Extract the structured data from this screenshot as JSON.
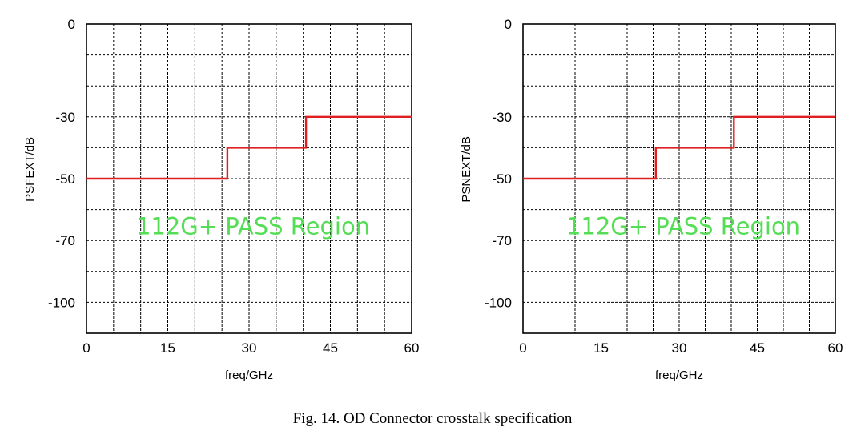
{
  "figure": {
    "caption": "Fig. 14. OD Connector crosstalk specification"
  },
  "chart_data": [
    {
      "type": "line",
      "xlabel": "freq/GHz",
      "ylabel": "PSFEXT/dB",
      "xlim": [
        0,
        60
      ],
      "xticks": [
        "0",
        "15",
        "30",
        "45",
        "60"
      ],
      "ytick_labels": [
        "0",
        "-30",
        "-50",
        "-70",
        "-100"
      ],
      "grid": true,
      "annotation": "112G+ PASS Region",
      "series": [
        {
          "color": "#e02020",
          "x": [
            0,
            26,
            26,
            40.5,
            40.5,
            60
          ],
          "y": [
            -50,
            -50,
            -40,
            -40,
            -30,
            -30
          ]
        }
      ]
    },
    {
      "type": "line",
      "xlabel": "freq/GHz",
      "ylabel": "PSNEXT/dB",
      "xlim": [
        0,
        60
      ],
      "xticks": [
        "0",
        "15",
        "30",
        "45",
        "60"
      ],
      "ytick_labels": [
        "0",
        "-30",
        "-50",
        "-70",
        "-100"
      ],
      "grid": true,
      "annotation": "112G+ PASS Region",
      "series": [
        {
          "color": "#e02020",
          "x": [
            0,
            25.5,
            25.5,
            40.5,
            40.5,
            60
          ],
          "y": [
            -50,
            -50,
            -40,
            -40,
            -30,
            -30
          ]
        }
      ]
    }
  ]
}
